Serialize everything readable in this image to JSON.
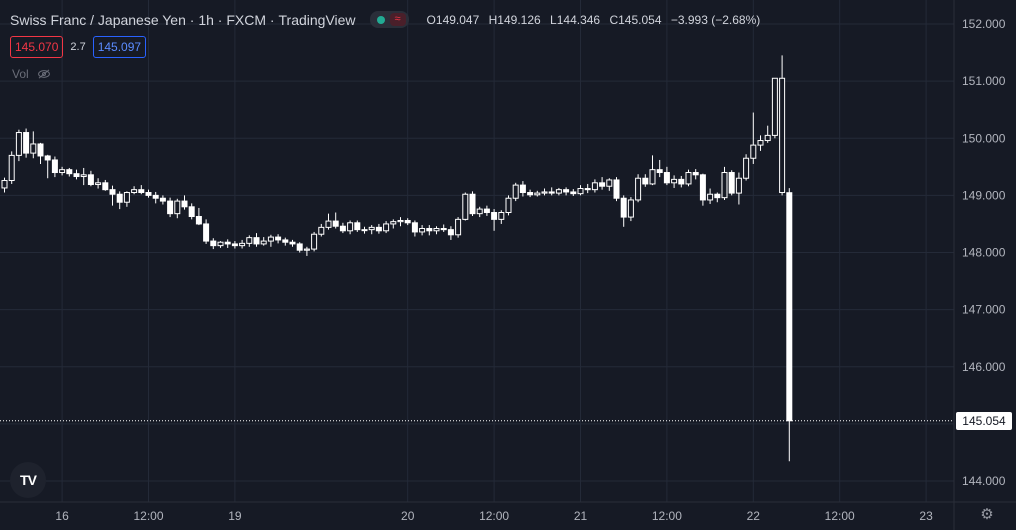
{
  "header": {
    "symbol": "Swiss Franc / Japanese Yen",
    "interval": "1h",
    "exchange": "FXCM",
    "source": "TradingView",
    "ohlc": {
      "o_label": "O",
      "o": "149.047",
      "h_label": "H",
      "h": "149.126",
      "l_label": "L",
      "l": "144.346",
      "c_label": "C",
      "c": "145.054",
      "change": "−3.993 (−2.68%)"
    },
    "sell_price": "145.070",
    "spread": "2.7",
    "buy_price": "145.097",
    "volume_label": "Vol"
  },
  "colors": {
    "background": "#161a25",
    "grid": "#242a38",
    "candle": "#ffffff",
    "sell": "#f23645",
    "buy": "#2962ff"
  },
  "icons": [
    "eye-off-icon",
    "tradingview-logo-icon",
    "settings-gear-icon",
    "market-status-icon"
  ],
  "chart_data": {
    "type": "candlestick",
    "title": "Swiss Franc / Japanese Yen",
    "ylim": [
      143.7,
      152.2
    ],
    "yticks": [
      144.0,
      145.0,
      146.0,
      147.0,
      148.0,
      149.0,
      150.0,
      151.0,
      152.0
    ],
    "ytick_labels": [
      "144.000",
      "145.000",
      "146.000",
      "147.000",
      "148.000",
      "149.000",
      "150.000",
      "151.000",
      "152.000"
    ],
    "xticks": [
      {
        "label": "16",
        "index": 8
      },
      {
        "label": "12:00",
        "index": 20
      },
      {
        "label": "19",
        "index": 32
      },
      {
        "label": "20",
        "index": 56
      },
      {
        "label": "12:00",
        "index": 68
      },
      {
        "label": "21",
        "index": 80
      },
      {
        "label": "12:00",
        "index": 92
      },
      {
        "label": "22",
        "index": 104
      },
      {
        "label": "12:00",
        "index": 116
      },
      {
        "label": "23",
        "index": 128
      }
    ],
    "last_price": 145.054,
    "last_price_label": "145.054",
    "grid": true,
    "candles": [
      [
        149.13,
        149.31,
        149.05,
        149.26
      ],
      [
        149.26,
        149.77,
        149.2,
        149.7
      ],
      [
        149.7,
        150.15,
        149.6,
        150.1
      ],
      [
        150.1,
        150.17,
        149.66,
        149.74
      ],
      [
        149.74,
        150.12,
        149.65,
        149.9
      ],
      [
        149.9,
        149.92,
        149.55,
        149.69
      ],
      [
        149.69,
        149.71,
        149.3,
        149.62
      ],
      [
        149.62,
        149.68,
        149.32,
        149.4
      ],
      [
        149.4,
        149.5,
        149.35,
        149.45
      ],
      [
        149.45,
        149.48,
        149.33,
        149.38
      ],
      [
        149.38,
        149.45,
        149.28,
        149.33
      ],
      [
        149.33,
        149.48,
        149.18,
        149.36
      ],
      [
        149.36,
        149.43,
        149.16,
        149.19
      ],
      [
        149.19,
        149.3,
        149.12,
        149.22
      ],
      [
        149.22,
        149.27,
        149.08,
        149.1
      ],
      [
        149.1,
        149.17,
        148.82,
        149.02
      ],
      [
        149.02,
        149.07,
        148.76,
        148.88
      ],
      [
        148.88,
        149.07,
        148.8,
        149.05
      ],
      [
        149.05,
        149.16,
        149.02,
        149.1
      ],
      [
        149.1,
        149.18,
        149.02,
        149.05
      ],
      [
        149.05,
        149.1,
        148.96,
        149.0
      ],
      [
        149.0,
        149.06,
        148.86,
        148.95
      ],
      [
        148.95,
        149.0,
        148.84,
        148.9
      ],
      [
        148.9,
        148.96,
        148.62,
        148.68
      ],
      [
        148.68,
        148.94,
        148.6,
        148.9
      ],
      [
        148.9,
        149.0,
        148.75,
        148.8
      ],
      [
        148.8,
        148.86,
        148.58,
        148.63
      ],
      [
        148.63,
        148.78,
        148.48,
        148.5
      ],
      [
        148.5,
        148.58,
        148.15,
        148.2
      ],
      [
        148.2,
        148.25,
        148.06,
        148.12
      ],
      [
        148.12,
        148.2,
        148.08,
        148.18
      ],
      [
        148.18,
        148.23,
        148.08,
        148.15
      ],
      [
        148.15,
        148.2,
        148.07,
        148.12
      ],
      [
        148.12,
        148.22,
        148.07,
        148.16
      ],
      [
        148.16,
        148.3,
        148.1,
        148.26
      ],
      [
        148.26,
        148.34,
        148.1,
        148.15
      ],
      [
        148.15,
        148.27,
        148.12,
        148.2
      ],
      [
        148.2,
        148.31,
        148.1,
        148.27
      ],
      [
        148.27,
        148.32,
        148.16,
        148.22
      ],
      [
        148.22,
        148.26,
        148.12,
        148.18
      ],
      [
        148.18,
        148.22,
        148.1,
        148.15
      ],
      [
        148.15,
        148.18,
        148.0,
        148.04
      ],
      [
        148.04,
        148.1,
        147.94,
        148.06
      ],
      [
        148.06,
        148.36,
        148.02,
        148.32
      ],
      [
        148.32,
        148.5,
        148.28,
        148.44
      ],
      [
        148.44,
        148.68,
        148.4,
        148.55
      ],
      [
        148.55,
        148.7,
        148.42,
        148.46
      ],
      [
        148.46,
        148.52,
        148.34,
        148.38
      ],
      [
        148.38,
        148.56,
        148.32,
        148.52
      ],
      [
        148.52,
        148.56,
        148.36,
        148.4
      ],
      [
        148.4,
        148.45,
        148.33,
        148.4
      ],
      [
        148.4,
        148.48,
        148.32,
        148.44
      ],
      [
        148.44,
        148.5,
        148.33,
        148.38
      ],
      [
        148.38,
        148.55,
        148.34,
        148.5
      ],
      [
        148.5,
        148.58,
        148.42,
        148.54
      ],
      [
        148.54,
        148.62,
        148.46,
        148.56
      ],
      [
        148.56,
        148.6,
        148.48,
        148.52
      ],
      [
        148.52,
        148.56,
        148.28,
        148.36
      ],
      [
        148.36,
        148.48,
        148.3,
        148.42
      ],
      [
        148.42,
        148.48,
        148.3,
        148.38
      ],
      [
        148.38,
        148.46,
        148.32,
        148.42
      ],
      [
        148.42,
        148.49,
        148.36,
        148.4
      ],
      [
        148.4,
        148.46,
        148.22,
        148.31
      ],
      [
        148.31,
        148.62,
        148.26,
        148.58
      ],
      [
        148.58,
        149.05,
        148.56,
        149.02
      ],
      [
        149.02,
        149.07,
        148.64,
        148.68
      ],
      [
        148.68,
        148.8,
        148.62,
        148.76
      ],
      [
        148.76,
        148.82,
        148.64,
        148.7
      ],
      [
        148.7,
        148.76,
        148.38,
        148.58
      ],
      [
        148.58,
        148.74,
        148.5,
        148.7
      ],
      [
        148.7,
        149.0,
        148.65,
        148.95
      ],
      [
        148.95,
        149.22,
        148.9,
        149.18
      ],
      [
        149.18,
        149.25,
        148.98,
        149.05
      ],
      [
        149.05,
        149.1,
        148.97,
        149.01
      ],
      [
        149.01,
        149.08,
        148.98,
        149.04
      ],
      [
        149.04,
        149.12,
        149.0,
        149.06
      ],
      [
        149.06,
        149.14,
        149.0,
        149.04
      ],
      [
        149.04,
        149.13,
        149.0,
        149.1
      ],
      [
        149.1,
        149.14,
        149.0,
        149.06
      ],
      [
        149.06,
        149.11,
        148.99,
        149.03
      ],
      [
        149.03,
        149.18,
        149.0,
        149.12
      ],
      [
        149.12,
        149.2,
        149.04,
        149.1
      ],
      [
        149.1,
        149.28,
        149.05,
        149.22
      ],
      [
        149.22,
        149.32,
        149.1,
        149.16
      ],
      [
        149.16,
        149.3,
        149.08,
        149.27
      ],
      [
        149.27,
        149.32,
        148.9,
        148.95
      ],
      [
        148.95,
        149.0,
        148.45,
        148.62
      ],
      [
        148.62,
        148.97,
        148.55,
        148.92
      ],
      [
        148.92,
        149.37,
        148.88,
        149.3
      ],
      [
        149.3,
        149.37,
        149.15,
        149.2
      ],
      [
        149.2,
        149.7,
        149.18,
        149.45
      ],
      [
        149.45,
        149.62,
        149.32,
        149.4
      ],
      [
        149.4,
        149.5,
        149.18,
        149.22
      ],
      [
        149.22,
        149.35,
        149.13,
        149.28
      ],
      [
        149.28,
        149.34,
        149.14,
        149.2
      ],
      [
        149.2,
        149.45,
        149.16,
        149.4
      ],
      [
        149.4,
        149.46,
        149.28,
        149.36
      ],
      [
        149.36,
        149.38,
        148.82,
        148.92
      ],
      [
        148.92,
        149.12,
        148.85,
        149.02
      ],
      [
        149.02,
        149.05,
        148.88,
        148.96
      ],
      [
        148.96,
        149.5,
        148.92,
        149.4
      ],
      [
        149.4,
        149.44,
        149.0,
        149.04
      ],
      [
        149.04,
        149.4,
        148.84,
        149.3
      ],
      [
        149.3,
        149.72,
        149.26,
        149.65
      ],
      [
        149.65,
        150.45,
        149.55,
        149.88
      ],
      [
        149.88,
        150.05,
        149.78,
        149.96
      ],
      [
        149.96,
        150.22,
        149.92,
        150.05
      ],
      [
        150.05,
        151.05,
        150.0,
        151.05
      ],
      [
        149.05,
        151.45,
        149.0,
        151.05
      ],
      [
        149.047,
        149.126,
        144.346,
        145.054
      ]
    ]
  }
}
